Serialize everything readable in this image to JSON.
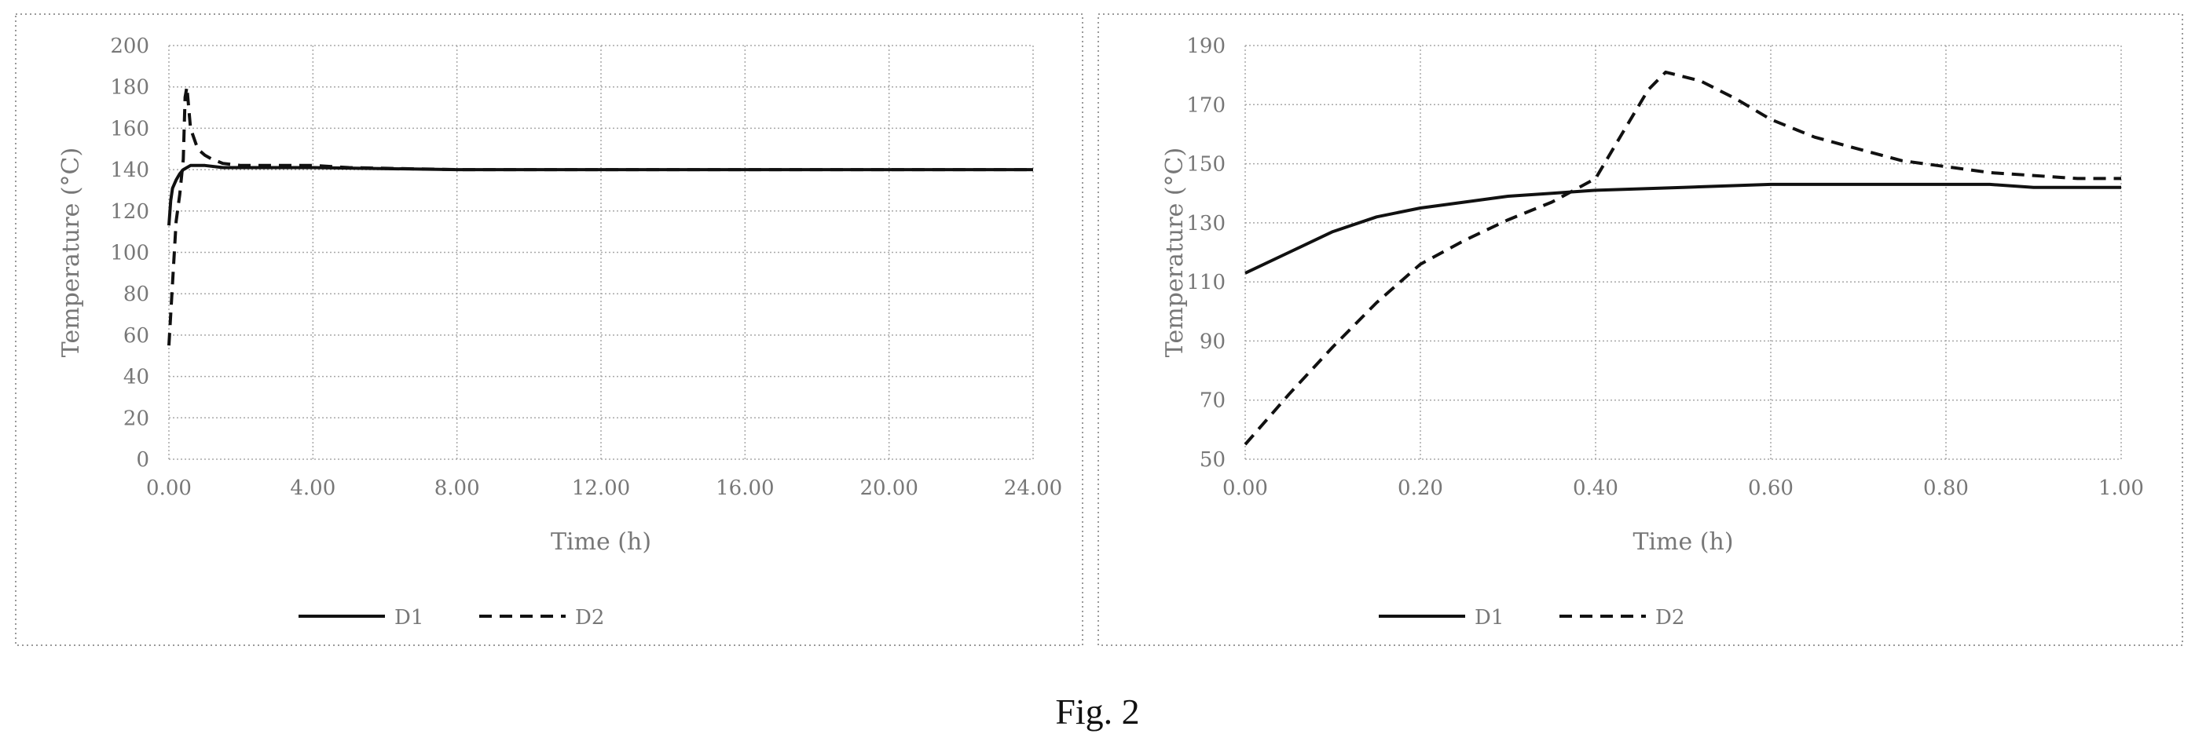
{
  "figure": {
    "caption": "Fig. 2"
  },
  "chart_data": [
    {
      "type": "line",
      "title": "",
      "xlabel": "Time (h)",
      "ylabel": "Temperature (°C)",
      "xlim": [
        0,
        24
      ],
      "ylim": [
        0,
        200
      ],
      "x_ticks": [
        "0.00",
        "4.00",
        "8.00",
        "12.00",
        "16.00",
        "20.00",
        "24.00"
      ],
      "y_ticks": [
        "0",
        "20",
        "40",
        "60",
        "80",
        "100",
        "120",
        "140",
        "160",
        "180",
        "200"
      ],
      "grid": true,
      "legend_position": "bottom",
      "series": [
        {
          "name": "D1",
          "style": "solid",
          "color": "#111111",
          "x": [
            0,
            0.05,
            0.1,
            0.2,
            0.3,
            0.4,
            0.5,
            0.6,
            0.8,
            1.0,
            1.5,
            2,
            4,
            8,
            12,
            16,
            20,
            24
          ],
          "y": [
            113,
            125,
            131,
            135,
            138,
            140,
            141,
            142,
            142,
            142,
            141,
            141,
            141,
            140,
            140,
            140,
            140,
            140
          ]
        },
        {
          "name": "D2",
          "style": "dashed",
          "color": "#111111",
          "x": [
            0,
            0.1,
            0.2,
            0.3,
            0.4,
            0.45,
            0.5,
            0.6,
            0.8,
            1.0,
            1.2,
            1.5,
            2,
            3,
            4,
            5,
            8,
            12,
            16,
            20,
            24
          ],
          "y": [
            55,
            85,
            115,
            128,
            145,
            175,
            180,
            160,
            150,
            147,
            145,
            143,
            142,
            142,
            142,
            141,
            140,
            140,
            140,
            140,
            140
          ]
        }
      ]
    },
    {
      "type": "line",
      "title": "",
      "xlabel": "Time (h)",
      "ylabel": "Temperature (°C)",
      "xlim": [
        0,
        1
      ],
      "ylim": [
        50,
        190
      ],
      "x_ticks": [
        "0.00",
        "0.20",
        "0.40",
        "0.60",
        "0.80",
        "1.00"
      ],
      "y_ticks": [
        "50",
        "70",
        "90",
        "110",
        "130",
        "150",
        "170",
        "190"
      ],
      "grid": true,
      "legend_position": "bottom",
      "series": [
        {
          "name": "D1",
          "style": "solid",
          "color": "#111111",
          "x": [
            0,
            0.05,
            0.1,
            0.15,
            0.2,
            0.25,
            0.3,
            0.35,
            0.4,
            0.5,
            0.6,
            0.7,
            0.8,
            0.85,
            0.9,
            1.0
          ],
          "y": [
            113,
            120,
            127,
            132,
            135,
            137,
            139,
            140,
            141,
            142,
            143,
            143,
            143,
            143,
            142,
            142
          ]
        },
        {
          "name": "D2",
          "style": "dashed",
          "color": "#111111",
          "x": [
            0,
            0.05,
            0.1,
            0.15,
            0.2,
            0.25,
            0.3,
            0.35,
            0.4,
            0.43,
            0.46,
            0.48,
            0.52,
            0.56,
            0.6,
            0.65,
            0.7,
            0.75,
            0.8,
            0.85,
            0.9,
            0.95,
            1.0
          ],
          "y": [
            55,
            72,
            88,
            103,
            116,
            124,
            131,
            137,
            145,
            160,
            175,
            181,
            178,
            172,
            165,
            159,
            155,
            151,
            149,
            147,
            146,
            145,
            145
          ]
        }
      ]
    }
  ]
}
